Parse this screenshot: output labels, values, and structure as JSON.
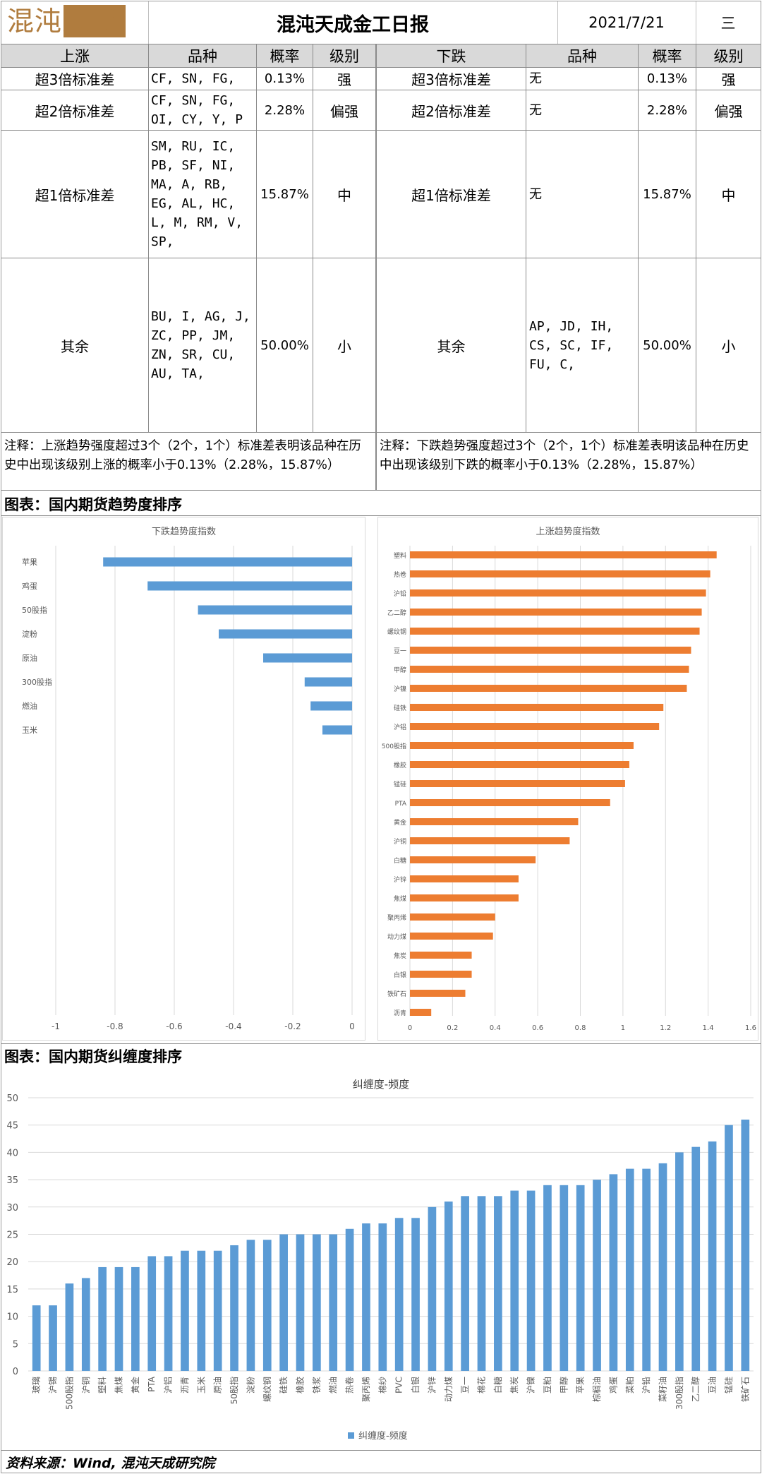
{
  "header": {
    "logo_text": "混沌天成",
    "title": "混沌天成金工日报",
    "date": "2021/7/21",
    "weekday": "三"
  },
  "table": {
    "up_headers": [
      "上涨",
      "品种",
      "概率",
      "级别"
    ],
    "down_headers": [
      "下跌",
      "品种",
      "概率",
      "级别"
    ],
    "rows": [
      {
        "up_label": "超3倍标准差",
        "up_items": "CF, SN, FG,",
        "up_prob": "0.13%",
        "up_level": "强",
        "down_label": "超3倍标准差",
        "down_items": "无",
        "down_prob": "0.13%",
        "down_level": "强"
      },
      {
        "up_label": "超2倍标准差",
        "up_items": "CF, SN, FG,\nOI, CY, Y, P",
        "up_prob": "2.28%",
        "up_level": "偏强",
        "down_label": "超2倍标准差",
        "down_items": "无",
        "down_prob": "2.28%",
        "down_level": "偏强"
      },
      {
        "up_label": "超1倍标准差",
        "up_items": "SM, RU, IC,\nPB, SF, NI,\nMA, A, RB,\nEG, AL, HC,\nL, M, RM, V,\nSP,",
        "up_prob": "15.87%",
        "up_level": "中",
        "down_label": "超1倍标准差",
        "down_items": "无",
        "down_prob": "15.87%",
        "down_level": "中"
      },
      {
        "up_label": "其余",
        "up_items": "BU, I, AG, J,\nZC, PP, JM,\nZN, SR, CU,\nAU, TA,",
        "up_prob": "50.00%",
        "up_level": "小",
        "down_label": "其余",
        "down_items": "AP, JD, IH,\nCS, SC, IF,\nFU, C,",
        "down_prob": "50.00%",
        "down_level": "小"
      }
    ],
    "up_note": "注释：上涨趋势强度超过3个（2个，1个）标准差表明该品种在历史中出现该级别上涨的概率小于0.13%（2.28%，15.87%）",
    "down_note": "注释：下跌趋势强度超过3个（2个，1个）标准差表明该品种在历史中出现该级别下跌的概率小于0.13%（2.28%，15.87%）"
  },
  "section1_title": "图表：国内期货趋势度排序",
  "section2_title": "图表：国内期货纠缠度排序",
  "source": "资料来源：Wind, 混沌天成研究院",
  "chart_data": [
    {
      "type": "bar",
      "orientation": "horizontal",
      "title": "下跌趋势度指数",
      "categories": [
        "苹果",
        "鸡蛋",
        "50股指",
        "淀粉",
        "原油",
        "300股指",
        "燃油",
        "玉米"
      ],
      "values": [
        -0.84,
        -0.69,
        -0.52,
        -0.45,
        -0.3,
        -0.16,
        -0.14,
        -0.1
      ],
      "xlim": [
        -1,
        0
      ],
      "xticks": [
        "-1",
        "-0.8",
        "-0.6",
        "-0.4",
        "-0.2",
        "0"
      ],
      "color": "#5b9bd5",
      "grid": true
    },
    {
      "type": "bar",
      "orientation": "horizontal",
      "title": "上涨趋势度指数",
      "categories": [
        "塑料",
        "热卷",
        "沪铅",
        "乙二醇",
        "螺纹钢",
        "豆一",
        "甲醇",
        "沪镍",
        "硅铁",
        "沪铝",
        "500股指",
        "橡胶",
        "锰硅",
        "PTA",
        "黄金",
        "沪铜",
        "白糖",
        "沪锌",
        "焦煤",
        "聚丙烯",
        "动力煤",
        "焦炭",
        "白银",
        "铁矿石",
        "沥青"
      ],
      "values": [
        1.44,
        1.41,
        1.39,
        1.37,
        1.36,
        1.32,
        1.31,
        1.3,
        1.19,
        1.17,
        1.05,
        1.03,
        1.01,
        0.94,
        0.79,
        0.75,
        0.59,
        0.51,
        0.51,
        0.4,
        0.39,
        0.29,
        0.29,
        0.26,
        0.1
      ],
      "xlim": [
        0,
        1.6
      ],
      "xticks": [
        "0",
        "0.2",
        "0.4",
        "0.6",
        "0.8",
        "1",
        "1.2",
        "1.4",
        "1.6"
      ],
      "color": "#ed7d31",
      "grid": true
    },
    {
      "type": "bar",
      "title": "纠缠度-频度",
      "legend": "纠缠度-频度",
      "legend_position": "bottom",
      "categories": [
        "玻璃",
        "沪锡",
        "500股指",
        "沪铜",
        "塑料",
        "焦煤",
        "黄金",
        "PTA",
        "沪铝",
        "沥青",
        "玉米",
        "原油",
        "50股指",
        "淀粉",
        "螺纹钢",
        "硅铁",
        "橡胶",
        "铁浆",
        "燃油",
        "热卷",
        "聚丙烯",
        "棉纱",
        "PVC",
        "白银",
        "沪锌",
        "动力煤",
        "豆一",
        "棉花",
        "白糖",
        "焦炭",
        "沪镍",
        "豆粕",
        "甲醇",
        "苹果",
        "棕榈油",
        "鸡蛋",
        "菜粕",
        "沪铅",
        "菜籽油",
        "300股指",
        "乙二醇",
        "豆油",
        "锰硅",
        "铁矿石"
      ],
      "values": [
        12,
        12,
        16,
        17,
        19,
        19,
        19,
        21,
        21,
        22,
        22,
        22,
        23,
        24,
        24,
        25,
        25,
        25,
        25,
        26,
        27,
        27,
        28,
        28,
        30,
        31,
        32,
        32,
        32,
        33,
        33,
        34,
        34,
        34,
        35,
        36,
        37,
        37,
        38,
        40,
        41,
        42,
        45,
        46
      ],
      "ylim": [
        0,
        50
      ],
      "yticks": [
        "0",
        "5",
        "10",
        "15",
        "20",
        "25",
        "30",
        "35",
        "40",
        "45",
        "50"
      ],
      "color": "#5b9bd5",
      "grid": true
    }
  ]
}
